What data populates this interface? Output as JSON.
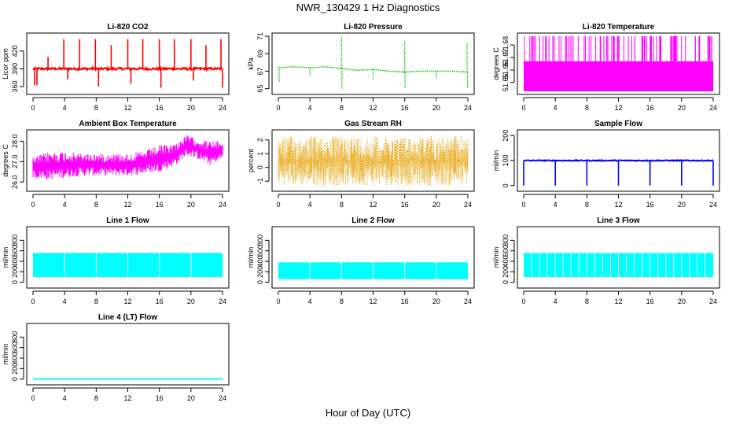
{
  "figure": {
    "title": "NWR_130429  1 Hz Diagnostics",
    "xlabel": "Hour of Day (UTC)"
  },
  "chart_data": [
    {
      "type": "line",
      "title": "Li-820 CO2",
      "ylabel": "Licor ppm",
      "color": "#ff0000",
      "xlim": [
        0,
        24
      ],
      "xticks": [
        "0",
        "4",
        "8",
        "12",
        "16",
        "20",
        "24"
      ],
      "ylim": [
        352,
        445
      ],
      "yticks": [
        {
          "v": 360,
          "t": "360"
        },
        {
          "v": 390,
          "t": "390"
        },
        {
          "v": 420,
          "t": "420"
        }
      ],
      "baseline": 390,
      "noise": 2,
      "spikes": [
        {
          "x": 0.2,
          "y": 362
        },
        {
          "x": 0.5,
          "y": 362
        },
        {
          "x": 1.9,
          "y": 410
        },
        {
          "x": 3.9,
          "y": 440
        },
        {
          "x": 4.4,
          "y": 372
        },
        {
          "x": 5.9,
          "y": 440
        },
        {
          "x": 7.9,
          "y": 440
        },
        {
          "x": 8.3,
          "y": 360
        },
        {
          "x": 9.9,
          "y": 430
        },
        {
          "x": 12.0,
          "y": 440
        },
        {
          "x": 12.4,
          "y": 365
        },
        {
          "x": 13.9,
          "y": 440
        },
        {
          "x": 16.0,
          "y": 440
        },
        {
          "x": 16.2,
          "y": 358
        },
        {
          "x": 17.9,
          "y": 440
        },
        {
          "x": 20.0,
          "y": 440
        },
        {
          "x": 20.3,
          "y": 370
        },
        {
          "x": 21.9,
          "y": 430
        },
        {
          "x": 23.8,
          "y": 440
        },
        {
          "x": 24.0,
          "y": 358
        }
      ]
    },
    {
      "type": "line",
      "title": "Li-820 Pressure",
      "ylabel": "kPa",
      "color": "#00c000",
      "xlim": [
        0,
        24
      ],
      "xticks": [
        "0",
        "4",
        "8",
        "12",
        "16",
        "20",
        "24"
      ],
      "ylim": [
        64.7,
        71.0
      ],
      "yticks": [
        {
          "v": 65,
          "t": "65"
        },
        {
          "v": 67,
          "t": "67"
        },
        {
          "v": 69,
          "t": "69"
        },
        {
          "v": 71,
          "t": "71"
        }
      ],
      "series_points": [
        {
          "x": 0,
          "y": 67.4
        },
        {
          "x": 2,
          "y": 67.5
        },
        {
          "x": 4,
          "y": 67.4
        },
        {
          "x": 6,
          "y": 67.5
        },
        {
          "x": 8,
          "y": 67.3
        },
        {
          "x": 10,
          "y": 67.1
        },
        {
          "x": 12,
          "y": 67.2
        },
        {
          "x": 14,
          "y": 67.0
        },
        {
          "x": 16,
          "y": 66.9
        },
        {
          "x": 18,
          "y": 67.0
        },
        {
          "x": 20,
          "y": 67.0
        },
        {
          "x": 22,
          "y": 67.0
        },
        {
          "x": 24,
          "y": 66.9
        }
      ],
      "spikes": [
        {
          "x": 0.1,
          "y": 65.8
        },
        {
          "x": 4.0,
          "y": 66.4
        },
        {
          "x": 8.0,
          "y": 71.0
        },
        {
          "x": 8.05,
          "y": 65.0
        },
        {
          "x": 12.0,
          "y": 66.1
        },
        {
          "x": 16.0,
          "y": 70.5
        },
        {
          "x": 16.05,
          "y": 65.0
        },
        {
          "x": 20.0,
          "y": 66.2
        },
        {
          "x": 23.9,
          "y": 70.2
        },
        {
          "x": 23.95,
          "y": 65.0
        }
      ]
    },
    {
      "type": "line",
      "title": "Li-820 Temperature",
      "ylabel": "degrees C",
      "color": "#ff00ff",
      "xlim": [
        0,
        24
      ],
      "xticks": [
        "0",
        "4",
        "8",
        "12",
        "16",
        "20",
        "24"
      ],
      "ylim": [
        51.643,
        51.687
      ],
      "yticks": [
        {
          "v": 51.65,
          "t": "51.65"
        },
        {
          "v": 51.66,
          "t": "51.66"
        },
        {
          "v": 51.67,
          "t": "51.67"
        },
        {
          "v": 51.68,
          "t": "51.68"
        }
      ],
      "band": [
        51.643,
        51.667
      ],
      "upper_level": 51.687
    },
    {
      "type": "line",
      "title": "Ambient Box Temperature",
      "ylabel": "degrees C",
      "color": "#ff00ff",
      "xlim": [
        0,
        24
      ],
      "xticks": [
        "0",
        "4",
        "8",
        "12",
        "16",
        "20",
        "24"
      ],
      "ylim": [
        25.7,
        28.4
      ],
      "yticks": [
        {
          "v": 26.0,
          "t": "26.0"
        },
        {
          "v": 27.0,
          "t": "27.0"
        },
        {
          "v": 28.0,
          "t": "28.0"
        }
      ],
      "envelope": [
        {
          "x": 0,
          "lo": 26.2,
          "hi": 27.2
        },
        {
          "x": 2,
          "lo": 26.1,
          "hi": 27.5
        },
        {
          "x": 4,
          "lo": 26.2,
          "hi": 27.5
        },
        {
          "x": 6,
          "lo": 26.3,
          "hi": 27.4
        },
        {
          "x": 8,
          "lo": 26.3,
          "hi": 27.4
        },
        {
          "x": 10,
          "lo": 26.3,
          "hi": 27.4
        },
        {
          "x": 12,
          "lo": 26.3,
          "hi": 27.4
        },
        {
          "x": 14,
          "lo": 26.4,
          "hi": 27.5
        },
        {
          "x": 16,
          "lo": 26.5,
          "hi": 27.8
        },
        {
          "x": 18,
          "lo": 26.8,
          "hi": 27.9
        },
        {
          "x": 19.5,
          "lo": 27.3,
          "hi": 28.3
        },
        {
          "x": 21,
          "lo": 27.1,
          "hi": 28.1
        },
        {
          "x": 22.5,
          "lo": 26.8,
          "hi": 28.0
        },
        {
          "x": 24,
          "lo": 27.1,
          "hi": 28.0
        }
      ]
    },
    {
      "type": "scatter",
      "title": "Gas Stream RH",
      "ylabel": "percent",
      "color": "#e6a000",
      "xlim": [
        0,
        24
      ],
      "xticks": [
        "0",
        "4",
        "8",
        "12",
        "16",
        "20",
        "24"
      ],
      "ylim": [
        -1.5,
        2.5
      ],
      "yticks": [
        {
          "v": -1,
          "t": "-1"
        },
        {
          "v": 0,
          "t": "0"
        },
        {
          "v": 1,
          "t": "1"
        },
        {
          "v": 2,
          "t": "2"
        }
      ],
      "band": [
        -1.3,
        2.3
      ]
    },
    {
      "type": "line",
      "title": "Sample Flow",
      "ylabel": "ml/min",
      "color": "#0000ff",
      "xlim": [
        0,
        24
      ],
      "xticks": [
        "0",
        "4",
        "8",
        "12",
        "16",
        "20",
        "24"
      ],
      "ylim": [
        -10,
        210
      ],
      "yticks": [
        {
          "v": 0,
          "t": "0"
        },
        {
          "v": 100,
          "t": "100"
        },
        {
          "v": 200,
          "t": "200"
        }
      ],
      "baseline": 100,
      "noise": 2,
      "spikes": [
        {
          "x": 0,
          "y": 0
        },
        {
          "x": 4,
          "y": 0
        },
        {
          "x": 8,
          "y": 0
        },
        {
          "x": 12,
          "y": 0
        },
        {
          "x": 16,
          "y": 0
        },
        {
          "x": 20,
          "y": 0
        },
        {
          "x": 24,
          "y": 0
        }
      ]
    },
    {
      "type": "area",
      "title": "Line 1 Flow",
      "ylabel": "ml/min",
      "color": "#00ffff",
      "xlim": [
        0,
        24
      ],
      "xticks": [
        "0",
        "4",
        "8",
        "12",
        "16",
        "20",
        "24"
      ],
      "ylim": [
        -50,
        1000
      ],
      "yticks": [
        {
          "v": 0,
          "t": "0"
        },
        {
          "v": 200,
          "t": "200"
        },
        {
          "v": 400,
          "t": "400"
        },
        {
          "v": 600,
          "t": "600"
        },
        {
          "v": 800,
          "t": "800"
        }
      ],
      "band": [
        100,
        560
      ],
      "gaps": [
        4,
        8,
        12,
        16,
        20
      ]
    },
    {
      "type": "area",
      "title": "Line 2 Flow",
      "ylabel": "ml/min",
      "color": "#00ffff",
      "xlim": [
        0,
        24
      ],
      "xticks": [
        "0",
        "4",
        "8",
        "12",
        "16",
        "20",
        "24"
      ],
      "ylim": [
        -50,
        1000
      ],
      "yticks": [
        {
          "v": 0,
          "t": "0"
        },
        {
          "v": 200,
          "t": "200"
        },
        {
          "v": 400,
          "t": "400"
        },
        {
          "v": 600,
          "t": "600"
        },
        {
          "v": 800,
          "t": "800"
        }
      ],
      "band": [
        60,
        380
      ],
      "gaps": [
        4,
        8,
        12,
        16,
        20
      ]
    },
    {
      "type": "area",
      "title": "Line 3 Flow",
      "ylabel": "ml/min",
      "color": "#00ffff",
      "xlim": [
        0,
        24
      ],
      "xticks": [
        "0",
        "4",
        "8",
        "12",
        "16",
        "20",
        "24"
      ],
      "ylim": [
        -50,
        1000
      ],
      "yticks": [
        {
          "v": 0,
          "t": "0"
        },
        {
          "v": 200,
          "t": "200"
        },
        {
          "v": 400,
          "t": "400"
        },
        {
          "v": 600,
          "t": "600"
        },
        {
          "v": 800,
          "t": "800"
        }
      ],
      "band": [
        100,
        560
      ],
      "gaps": [
        1,
        2,
        3,
        4,
        5,
        6,
        7,
        8,
        9,
        10,
        11,
        12,
        13,
        14,
        15,
        16,
        17,
        18,
        19,
        20,
        21,
        22,
        23
      ]
    },
    {
      "type": "line",
      "title": "Line 4 (LT) Flow",
      "ylabel": "ml/min",
      "color": "#00ffff",
      "xlim": [
        0,
        24
      ],
      "xticks": [
        "0",
        "4",
        "8",
        "12",
        "16",
        "20",
        "24"
      ],
      "ylim": [
        -50,
        1000
      ],
      "yticks": [
        {
          "v": 0,
          "t": "0"
        },
        {
          "v": 200,
          "t": "200"
        },
        {
          "v": 400,
          "t": "400"
        },
        {
          "v": 600,
          "t": "600"
        },
        {
          "v": 800,
          "t": "800"
        }
      ],
      "baseline": 2
    }
  ]
}
